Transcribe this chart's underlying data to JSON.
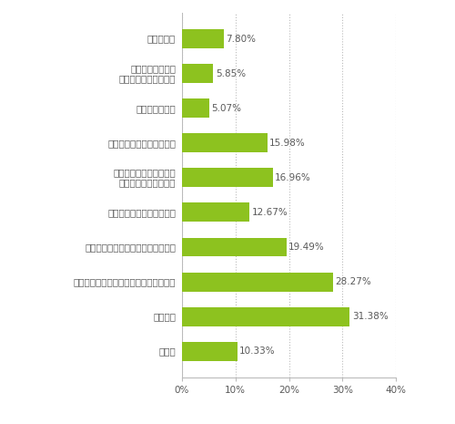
{
  "categories": [
    "鏡を無くす",
    "水栓下に箱を置く\nカウンターを設置する",
    "収納棚をなくす",
    "マグネットの収納棚を使う",
    "シャワーヘッドの位置を\n変えられるようにする",
    "ランドリーパイプを増やす",
    "小物を引っかけられるバーを増やす",
    "浴室全体を汚れの目立ちにくい色にする",
    "特になし",
    "その他"
  ],
  "values": [
    7.8,
    5.85,
    5.07,
    15.98,
    16.96,
    12.67,
    19.49,
    28.27,
    31.38,
    10.33
  ],
  "bar_color": "#8dc21f",
  "text_color": "#595959",
  "label_color": "#595959",
  "background_color": "#ffffff",
  "bar_text_color": "#595959",
  "xlim": [
    0,
    40
  ],
  "xticks": [
    0,
    10,
    20,
    30,
    40
  ],
  "xtick_labels": [
    "0%",
    "10%",
    "20%",
    "30%",
    "40%"
  ],
  "label_fontsize": 7.5,
  "value_fontsize": 7.5,
  "tick_fontsize": 7.5,
  "footnote_fontsize": 7.0
}
